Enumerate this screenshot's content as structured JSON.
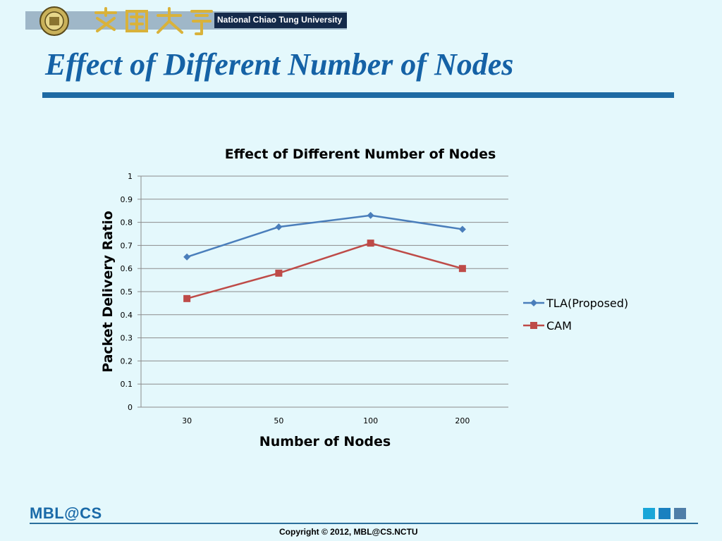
{
  "header": {
    "university_banner": "National Chiao Tung University"
  },
  "slide": {
    "title": "Effect of Different Number of Nodes"
  },
  "chart_data": {
    "type": "line",
    "title": "Effect of Different Number of Nodes",
    "xlabel": "Number of Nodes",
    "ylabel": "Packet Delivery Ratio",
    "categories": [
      "30",
      "50",
      "100",
      "200"
    ],
    "ylim": [
      0,
      1
    ],
    "yticks": [
      "0",
      "0.1",
      "0.2",
      "0.3",
      "0.4",
      "0.5",
      "0.6",
      "0.7",
      "0.8",
      "0.9",
      "1"
    ],
    "grid": true,
    "legend_position": "right",
    "series": [
      {
        "name": "TLA(Proposed)",
        "values": [
          0.65,
          0.78,
          0.83,
          0.77
        ],
        "color": "#4a7ebb",
        "marker": "diamond"
      },
      {
        "name": "CAM",
        "values": [
          0.47,
          0.58,
          0.71,
          0.6
        ],
        "color": "#be4b48",
        "marker": "square"
      }
    ]
  },
  "footer": {
    "logo": "MBL@CS",
    "copyright": "Copyright © 2012, MBL@CS.NCTU",
    "square_colors": [
      "#19a6d8",
      "#1a80c0",
      "#4f7ea8"
    ]
  }
}
